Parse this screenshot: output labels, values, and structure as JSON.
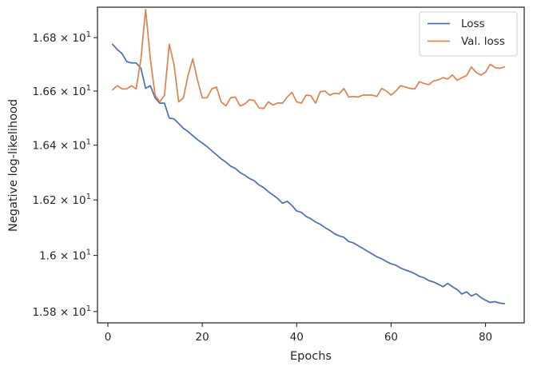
{
  "chart_data": {
    "type": "line",
    "title": "",
    "xlabel": "Epochs",
    "ylabel": "Negative log-likelihood",
    "xlim": [
      -2.2,
      88.2
    ],
    "ylim": [
      15.76,
      16.915
    ],
    "yscale": "log",
    "grid": false,
    "legend_position": "top-right",
    "x_ticks": [
      0,
      20,
      40,
      60,
      80
    ],
    "y_ticks": [
      {
        "value": 15.8,
        "mantissa": "1.58",
        "exp": "1"
      },
      {
        "value": 16.0,
        "mantissa": "1.6",
        "exp": "1"
      },
      {
        "value": 16.2,
        "mantissa": "1.62",
        "exp": "1"
      },
      {
        "value": 16.4,
        "mantissa": "1.64",
        "exp": "1"
      },
      {
        "value": 16.6,
        "mantissa": "1.66",
        "exp": "1"
      },
      {
        "value": 16.8,
        "mantissa": "1.68",
        "exp": "1"
      }
    ],
    "tick_separator": "×",
    "series": [
      {
        "name": "Loss",
        "color": "#4c72b0",
        "x": [
          1,
          2,
          3,
          4,
          5,
          6,
          7,
          8,
          9,
          10,
          11,
          12,
          13,
          14,
          15,
          16,
          17,
          18,
          19,
          20,
          21,
          22,
          23,
          24,
          25,
          26,
          27,
          28,
          29,
          30,
          31,
          32,
          33,
          34,
          35,
          36,
          37,
          38,
          39,
          40,
          41,
          42,
          43,
          44,
          45,
          46,
          47,
          48,
          49,
          50,
          51,
          52,
          53,
          54,
          55,
          56,
          57,
          58,
          59,
          60,
          61,
          62,
          63,
          64,
          65,
          66,
          67,
          68,
          69,
          70,
          71,
          72,
          73,
          74,
          75,
          76,
          77,
          78,
          79,
          80,
          81,
          82,
          83,
          84
        ],
        "values": [
          16.775,
          16.755,
          16.74,
          16.71,
          16.705,
          16.705,
          16.685,
          16.61,
          16.62,
          16.575,
          16.555,
          16.555,
          16.5,
          16.497,
          16.48,
          16.462,
          16.45,
          16.435,
          16.42,
          16.408,
          16.395,
          16.38,
          16.365,
          16.35,
          16.338,
          16.323,
          16.315,
          16.3,
          16.29,
          16.278,
          16.27,
          16.255,
          16.245,
          16.23,
          16.218,
          16.205,
          16.188,
          16.195,
          16.18,
          16.16,
          16.155,
          16.14,
          16.132,
          16.12,
          16.112,
          16.1,
          16.09,
          16.078,
          16.07,
          16.065,
          16.05,
          16.045,
          16.035,
          16.025,
          16.015,
          16.005,
          15.995,
          15.988,
          15.978,
          15.97,
          15.965,
          15.955,
          15.948,
          15.942,
          15.935,
          15.925,
          15.92,
          15.91,
          15.905,
          15.897,
          15.888,
          15.9,
          15.888,
          15.878,
          15.862,
          15.87,
          15.855,
          15.863,
          15.85,
          15.84,
          15.832,
          15.835,
          15.83,
          15.828
        ]
      },
      {
        "name": "Val. loss",
        "color": "#dd8452",
        "x": [
          1,
          2,
          3,
          4,
          5,
          6,
          7,
          8,
          9,
          10,
          11,
          12,
          13,
          14,
          15,
          16,
          17,
          18,
          19,
          20,
          21,
          22,
          23,
          24,
          25,
          26,
          27,
          28,
          29,
          30,
          31,
          32,
          33,
          34,
          35,
          36,
          37,
          38,
          39,
          40,
          41,
          42,
          43,
          44,
          45,
          46,
          47,
          48,
          49,
          50,
          51,
          52,
          53,
          54,
          55,
          56,
          57,
          58,
          59,
          60,
          61,
          62,
          63,
          64,
          65,
          66,
          67,
          68,
          69,
          70,
          71,
          72,
          73,
          74,
          75,
          76,
          77,
          78,
          79,
          80,
          81,
          82,
          83,
          84
        ],
        "values": [
          16.605,
          16.62,
          16.608,
          16.608,
          16.62,
          16.608,
          16.72,
          16.906,
          16.72,
          16.585,
          16.56,
          16.585,
          16.775,
          16.7,
          16.56,
          16.575,
          16.66,
          16.72,
          16.64,
          16.575,
          16.575,
          16.608,
          16.615,
          16.56,
          16.545,
          16.575,
          16.578,
          16.545,
          16.552,
          16.568,
          16.565,
          16.538,
          16.535,
          16.56,
          16.548,
          16.556,
          16.555,
          16.578,
          16.595,
          16.56,
          16.555,
          16.585,
          16.583,
          16.555,
          16.598,
          16.6,
          16.585,
          16.592,
          16.59,
          16.61,
          16.578,
          16.58,
          16.578,
          16.585,
          16.585,
          16.585,
          16.58,
          16.61,
          16.6,
          16.585,
          16.6,
          16.62,
          16.615,
          16.61,
          16.608,
          16.635,
          16.628,
          16.624,
          16.638,
          16.642,
          16.65,
          16.645,
          16.66,
          16.64,
          16.65,
          16.658,
          16.69,
          16.67,
          16.66,
          16.67,
          16.7,
          16.688,
          16.685,
          16.69
        ]
      }
    ]
  }
}
